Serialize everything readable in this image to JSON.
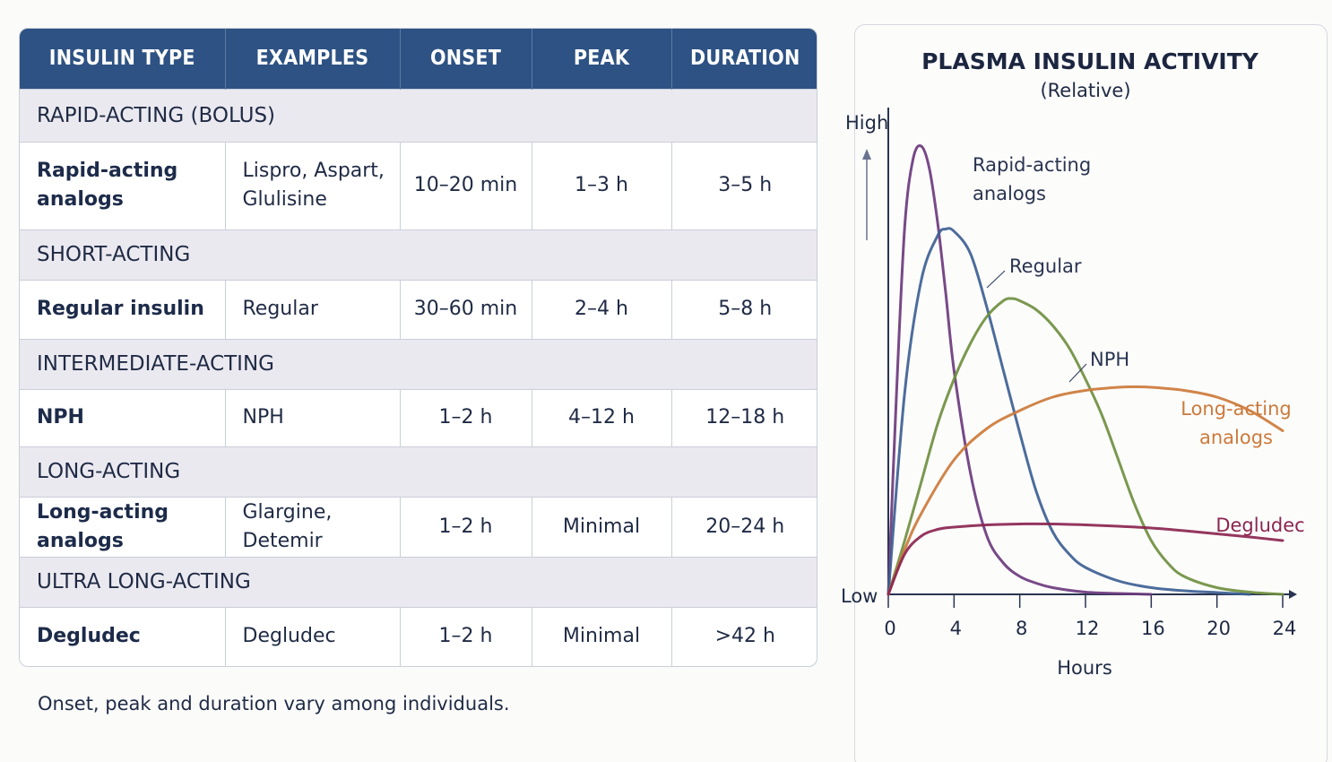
{
  "table": {
    "headers": [
      "INSULIN TYPE",
      "EXAMPLES",
      "ONSET",
      "PEAK",
      "DURATION"
    ],
    "groups": [
      {
        "category": "RAPID-ACTING (BOLUS)",
        "row": {
          "type": [
            "Rapid-acting",
            "analogs"
          ],
          "examples": [
            "Lispro, Aspart,",
            "Glulisine"
          ],
          "onset": "10–20 min",
          "peak": "1–3 h",
          "duration": "3–5 h"
        }
      },
      {
        "category": "SHORT-ACTING",
        "row": {
          "type": [
            "Regular insulin"
          ],
          "examples": [
            "Regular"
          ],
          "onset": "30–60 min",
          "peak": "2–4 h",
          "duration": "5–8 h"
        }
      },
      {
        "category": "INTERMEDIATE-ACTING",
        "row": {
          "type": [
            "NPH"
          ],
          "examples": [
            "NPH"
          ],
          "onset": "1–2 h",
          "peak": "4–12 h",
          "duration": "12–18 h"
        }
      },
      {
        "category": "LONG-ACTING",
        "row": {
          "type": [
            "Long-acting analogs"
          ],
          "examples": [
            "Glargine, Detemir"
          ],
          "onset": "1–2 h",
          "peak": "Minimal",
          "duration": "20–24 h"
        }
      },
      {
        "category": "ULTRA LONG-ACTING",
        "row": {
          "type": [
            "Degludec"
          ],
          "examples": [
            "Degludec"
          ],
          "onset": "1–2 h",
          "peak": "Minimal",
          "duration": ">42 h"
        }
      }
    ]
  },
  "note": "Onset, peak and duration vary among individuals.",
  "chart_data": {
    "type": "line",
    "title": "PLASMA INSULIN ACTIVITY",
    "subtitle": "(Relative)",
    "xlabel": "Hours",
    "ylabel_high": "High",
    "ylabel_low": "Low",
    "xlim": [
      0,
      24
    ],
    "ylim": [
      0,
      1
    ],
    "xticks": [
      0,
      4,
      8,
      12,
      16,
      20,
      24
    ],
    "grid": false,
    "series": [
      {
        "name": "Rapid-acting analogs",
        "label_lines": [
          "Rapid-acting",
          "analogs"
        ],
        "color": "#6b3a7d",
        "x": [
          0,
          0.5,
          1,
          1.5,
          2,
          2.5,
          3,
          3.5,
          4,
          5,
          6,
          7,
          8,
          9,
          10,
          12,
          14,
          16
        ],
        "y": [
          0,
          0.45,
          0.82,
          0.97,
          1.0,
          0.95,
          0.83,
          0.67,
          0.5,
          0.27,
          0.13,
          0.07,
          0.04,
          0.025,
          0.015,
          0.005,
          0.002,
          0
        ]
      },
      {
        "name": "Regular",
        "label_lines": [
          "Regular"
        ],
        "color": "#3d5f93",
        "x": [
          0,
          1,
          2,
          3,
          3.5,
          4,
          5,
          6,
          7,
          8,
          9,
          10,
          11,
          12,
          14,
          16,
          18,
          20,
          22
        ],
        "y": [
          0,
          0.45,
          0.7,
          0.8,
          0.815,
          0.81,
          0.76,
          0.64,
          0.5,
          0.36,
          0.23,
          0.14,
          0.09,
          0.06,
          0.03,
          0.015,
          0.008,
          0.004,
          0
        ]
      },
      {
        "name": "NPH",
        "label_lines": [
          "NPH"
        ],
        "color": "#6f8f3f",
        "x": [
          0,
          1,
          2,
          3,
          4,
          5,
          6,
          7,
          7.5,
          8,
          9,
          10,
          11,
          12,
          13,
          14,
          15,
          16,
          17,
          18,
          20,
          22,
          24
        ],
        "y": [
          0,
          0.12,
          0.25,
          0.38,
          0.48,
          0.56,
          0.62,
          0.655,
          0.66,
          0.655,
          0.635,
          0.6,
          0.55,
          0.48,
          0.4,
          0.3,
          0.2,
          0.12,
          0.07,
          0.04,
          0.015,
          0.005,
          0
        ]
      },
      {
        "name": "Long-acting analogs",
        "label_lines": [
          "Long-acting",
          "analogs"
        ],
        "color": "#cc7a3a",
        "x": [
          0,
          1,
          2,
          4,
          6,
          8,
          10,
          12,
          14,
          15,
          16,
          18,
          20,
          22,
          24
        ],
        "y": [
          0,
          0.1,
          0.18,
          0.3,
          0.37,
          0.41,
          0.44,
          0.455,
          0.462,
          0.463,
          0.462,
          0.455,
          0.44,
          0.41,
          0.365
        ]
      },
      {
        "name": "Degludec",
        "label_lines": [
          "Degludec"
        ],
        "color": "#8b2550",
        "x": [
          0,
          1,
          2,
          3,
          4,
          6,
          8,
          10,
          12,
          14,
          16,
          18,
          20,
          22,
          24
        ],
        "y": [
          0,
          0.09,
          0.13,
          0.145,
          0.15,
          0.155,
          0.157,
          0.157,
          0.155,
          0.152,
          0.148,
          0.142,
          0.135,
          0.128,
          0.12
        ]
      }
    ]
  }
}
